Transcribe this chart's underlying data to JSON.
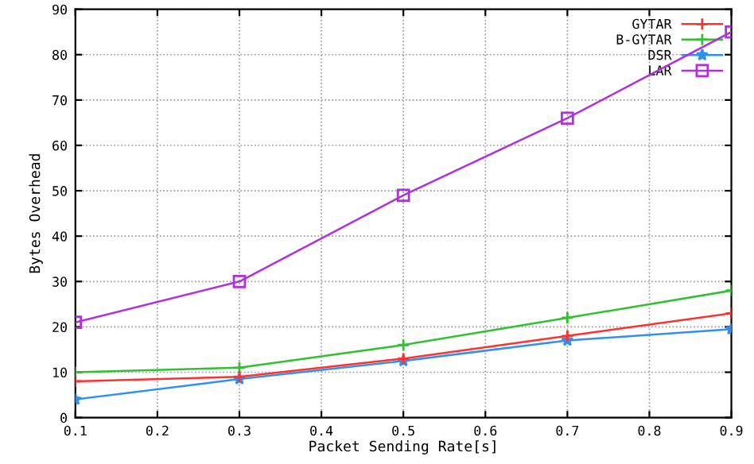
{
  "chart_data": {
    "type": "line",
    "xlabel": "Packet Sending Rate[s]",
    "ylabel": "Bytes Overhead",
    "x": [
      0.1,
      0.3,
      0.5,
      0.7,
      0.9
    ],
    "series": [
      {
        "name": "GYTAR",
        "color": "#ff3030",
        "marker": "cross",
        "values": [
          8,
          9,
          13,
          18,
          23
        ]
      },
      {
        "name": "B-GYTAR",
        "color": "#30c030",
        "marker": "cross",
        "values": [
          10,
          11,
          16,
          22,
          28
        ]
      },
      {
        "name": "DSR",
        "color": "#3090f0",
        "marker": "star",
        "values": [
          4,
          8.5,
          12.5,
          17,
          19.5
        ]
      },
      {
        "name": "LAR",
        "color": "#b030e0",
        "marker": "square",
        "values": [
          21,
          30,
          49,
          66,
          85
        ]
      }
    ],
    "xlim": [
      0.1,
      0.9
    ],
    "xticks": [
      0.1,
      0.2,
      0.3,
      0.4,
      0.5,
      0.6,
      0.7,
      0.8,
      0.9
    ],
    "ylim": [
      0,
      90
    ],
    "yticks": [
      0,
      10,
      20,
      30,
      40,
      50,
      60,
      70,
      80,
      90
    ],
    "grid": true,
    "legend": "top right",
    "line_style": "solid"
  }
}
